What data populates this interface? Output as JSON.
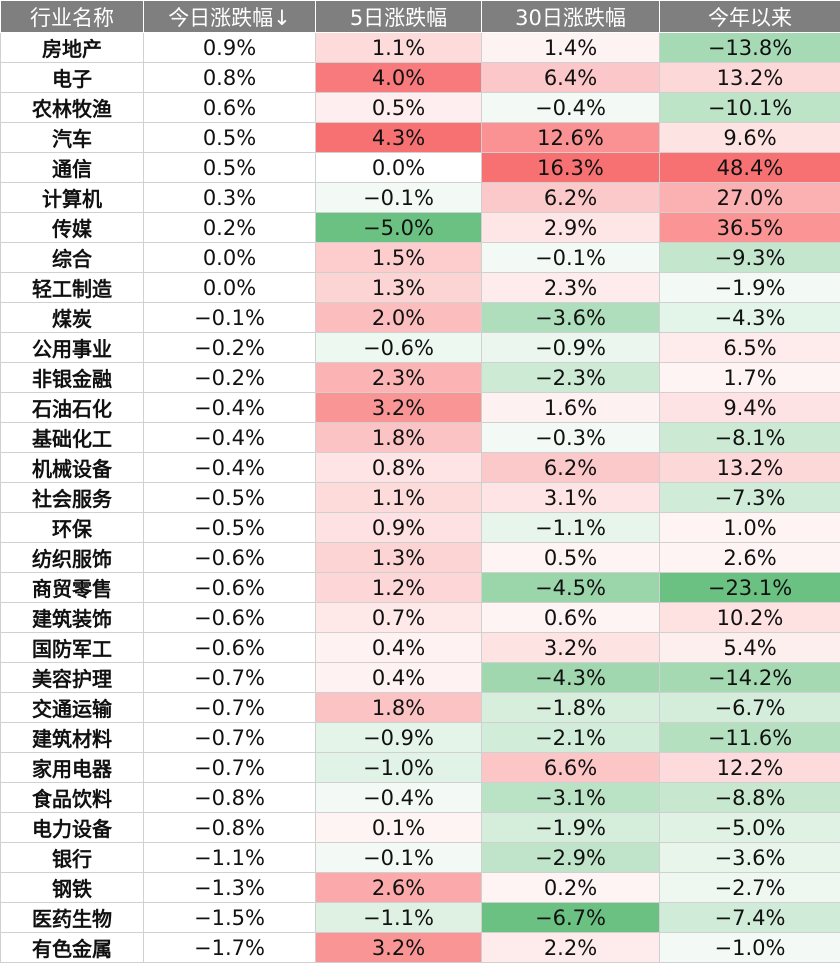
{
  "chart_data": {
    "type": "table",
    "headers": [
      "行业名称",
      "今日涨跌幅↓",
      "5日涨跌幅",
      "30日涨跌幅",
      "今年以来"
    ],
    "rows": [
      [
        "房地产",
        "0.9%",
        "1.1%",
        "1.4%",
        "−13.8%"
      ],
      [
        "电子",
        "0.8%",
        "4.0%",
        "6.4%",
        "13.2%"
      ],
      [
        "农林牧渔",
        "0.6%",
        "0.5%",
        "−0.4%",
        "−10.1%"
      ],
      [
        "汽车",
        "0.5%",
        "4.3%",
        "12.6%",
        "9.6%"
      ],
      [
        "通信",
        "0.5%",
        "0.0%",
        "16.3%",
        "48.4%"
      ],
      [
        "计算机",
        "0.3%",
        "−0.1%",
        "6.2%",
        "27.0%"
      ],
      [
        "传媒",
        "0.2%",
        "−5.0%",
        "2.9%",
        "36.5%"
      ],
      [
        "综合",
        "0.0%",
        "1.5%",
        "−0.1%",
        "−9.3%"
      ],
      [
        "轻工制造",
        "0.0%",
        "1.3%",
        "2.3%",
        "−1.9%"
      ],
      [
        "煤炭",
        "−0.1%",
        "2.0%",
        "−3.6%",
        "−4.3%"
      ],
      [
        "公用事业",
        "−0.2%",
        "−0.6%",
        "−0.9%",
        "6.5%"
      ],
      [
        "非银金融",
        "−0.2%",
        "2.3%",
        "−2.3%",
        "1.7%"
      ],
      [
        "石油石化",
        "−0.4%",
        "3.2%",
        "1.6%",
        "9.4%"
      ],
      [
        "基础化工",
        "−0.4%",
        "1.8%",
        "−0.3%",
        "−8.1%"
      ],
      [
        "机械设备",
        "−0.4%",
        "0.8%",
        "6.2%",
        "13.2%"
      ],
      [
        "社会服务",
        "−0.5%",
        "1.1%",
        "3.1%",
        "−7.3%"
      ],
      [
        "环保",
        "−0.5%",
        "0.9%",
        "−1.1%",
        "1.0%"
      ],
      [
        "纺织服饰",
        "−0.6%",
        "1.3%",
        "0.5%",
        "2.6%"
      ],
      [
        "商贸零售",
        "−0.6%",
        "1.2%",
        "−4.5%",
        "−23.1%"
      ],
      [
        "建筑装饰",
        "−0.6%",
        "0.7%",
        "0.6%",
        "10.2%"
      ],
      [
        "国防军工",
        "−0.6%",
        "0.4%",
        "3.2%",
        "5.4%"
      ],
      [
        "美容护理",
        "−0.7%",
        "0.4%",
        "−4.3%",
        "−14.2%"
      ],
      [
        "交通运输",
        "−0.7%",
        "1.8%",
        "−1.8%",
        "−6.7%"
      ],
      [
        "建筑材料",
        "−0.7%",
        "−0.9%",
        "−2.1%",
        "−11.6%"
      ],
      [
        "家用电器",
        "−0.7%",
        "−1.0%",
        "6.6%",
        "12.2%"
      ],
      [
        "食品饮料",
        "−0.8%",
        "−0.4%",
        "−3.1%",
        "−8.8%"
      ],
      [
        "电力设备",
        "−0.8%",
        "0.1%",
        "−1.9%",
        "−5.0%"
      ],
      [
        "银行",
        "−1.1%",
        "−0.1%",
        "−2.9%",
        "−3.6%"
      ],
      [
        "钢铁",
        "−1.3%",
        "2.6%",
        "0.2%",
        "−2.7%"
      ],
      [
        "医药生物",
        "−1.5%",
        "−1.1%",
        "−6.7%",
        "−7.4%"
      ],
      [
        "有色金属",
        "−1.7%",
        "3.2%",
        "2.2%",
        "−1.0%"
      ]
    ],
    "colors": {
      "header_bg": "#7f7f7f",
      "header_text": "#ffffff",
      "positive_max": "#f8696b",
      "negative_max": "#63be7b",
      "neutral": "#ffffff"
    }
  }
}
